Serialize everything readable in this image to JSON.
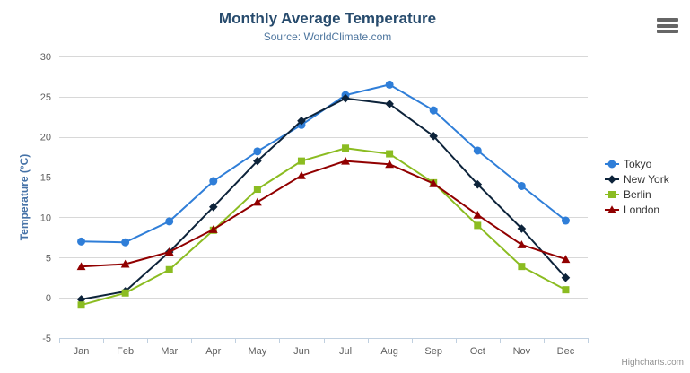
{
  "header": {
    "title": "Monthly Average Temperature",
    "subtitle": "Source: WorldClimate.com"
  },
  "credits": {
    "label": "Highcharts.com"
  },
  "icons": {
    "export_menu": "hamburger-menu-icon"
  },
  "style": {
    "title_color": "#274b6d",
    "subtitle_color": "#4d759e",
    "axis_label_color": "#606060",
    "axis_title_color": "#4572a7",
    "grid_color": "#d8d8d8",
    "axis_line_color": "#c0d0e0",
    "legend_text_color": "#333333",
    "credits_color": "#909090",
    "menu_icon_color": "#666666",
    "background_color": "#ffffff"
  },
  "chart_data": {
    "type": "line",
    "title": "Monthly Average Temperature",
    "subtitle": "Source: WorldClimate.com",
    "categories": [
      "Jan",
      "Feb",
      "Mar",
      "Apr",
      "May",
      "Jun",
      "Jul",
      "Aug",
      "Sep",
      "Oct",
      "Nov",
      "Dec"
    ],
    "series": [
      {
        "name": "Tokyo",
        "color": "#2f7ed8",
        "marker": "circle",
        "values": [
          7.0,
          6.9,
          9.5,
          14.5,
          18.2,
          21.5,
          25.2,
          26.5,
          23.3,
          18.3,
          13.9,
          9.6
        ]
      },
      {
        "name": "New York",
        "color": "#0d233a",
        "marker": "diamond",
        "values": [
          -0.2,
          0.8,
          5.7,
          11.3,
          17.0,
          22.0,
          24.8,
          24.1,
          20.1,
          14.1,
          8.6,
          2.5
        ]
      },
      {
        "name": "Berlin",
        "color": "#8bbc21",
        "marker": "square",
        "values": [
          -0.9,
          0.6,
          3.5,
          8.4,
          13.5,
          17.0,
          18.6,
          17.9,
          14.3,
          9.0,
          3.9,
          1.0
        ]
      },
      {
        "name": "London",
        "color": "#910000",
        "marker": "triangle",
        "values": [
          3.9,
          4.2,
          5.7,
          8.5,
          11.9,
          15.2,
          17.0,
          16.6,
          14.2,
          10.3,
          6.6,
          4.8
        ]
      }
    ],
    "xlabel": "",
    "ylabel": "Temperature (°C)",
    "ylim": [
      -5,
      30
    ],
    "yticks": [
      -5,
      0,
      5,
      10,
      15,
      20,
      25,
      30
    ],
    "grid": true,
    "legend_position": "right"
  }
}
